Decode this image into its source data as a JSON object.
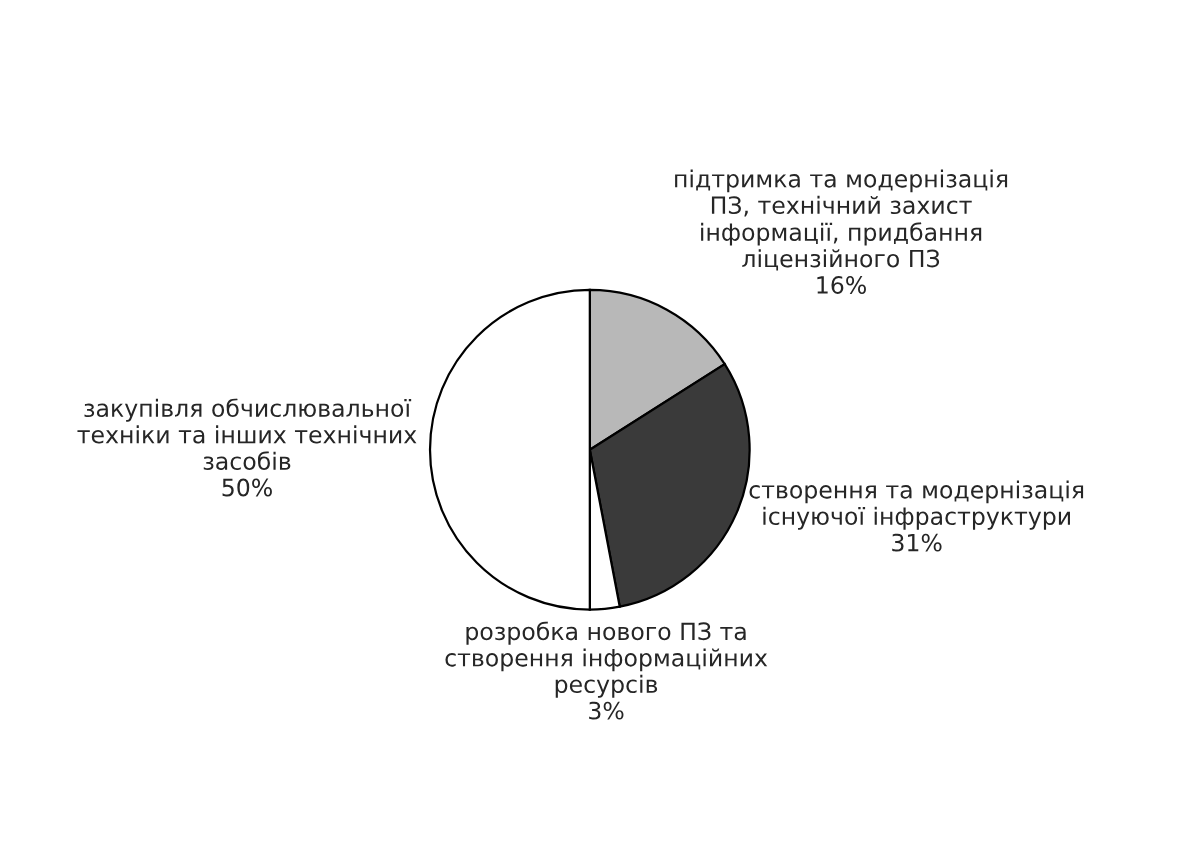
{
  "chart_data": {
    "type": "pie",
    "categories": [
      "підтримка та модернізація\nПЗ, технічний захист\nінформації, придбання\nліцензійного ПЗ",
      "створення та модернізація\nіснуючої інфраструктури",
      "розробка нового ПЗ та\nстворення інформаційних\nресурсів",
      "закупівля обчислювальної\nтехніки та інших технічних\nзасобів"
    ],
    "values": [
      16,
      31,
      3,
      50
    ],
    "value_labels": [
      "16%",
      "31%",
      "3%",
      "50%"
    ],
    "colors": [
      "#b8b8b8",
      "#3a3a3a",
      "#ffffff",
      "#ffffff"
    ]
  }
}
